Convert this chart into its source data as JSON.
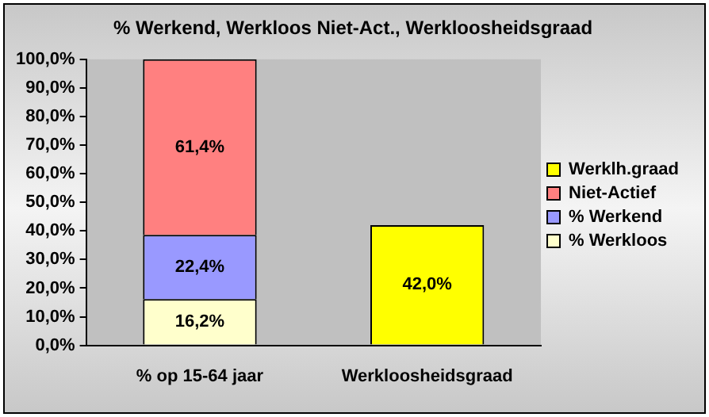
{
  "chart_data": {
    "type": "bar",
    "title": "% Werkend, Werkloos Niet-Act., Werkloosheidsgraad",
    "categories": [
      "% op 15-64 jaar",
      "Werkloosheidsgraad"
    ],
    "stacked": true,
    "legend": "right",
    "grid": false,
    "ylim": [
      0,
      100
    ],
    "yticks": [
      {
        "value": 0,
        "label": "0,0%"
      },
      {
        "value": 10,
        "label": "10,0%"
      },
      {
        "value": 20,
        "label": "20,0%"
      },
      {
        "value": 30,
        "label": "30,0%"
      },
      {
        "value": 40,
        "label": "40,0%"
      },
      {
        "value": 50,
        "label": "50,0%"
      },
      {
        "value": 60,
        "label": "60,0%"
      },
      {
        "value": 70,
        "label": "70,0%"
      },
      {
        "value": 80,
        "label": "80,0%"
      },
      {
        "value": 90,
        "label": "90,0%"
      },
      {
        "value": 100,
        "label": "100,0%"
      }
    ],
    "series": [
      {
        "name": "% Werkloos",
        "color": "#ffffcc",
        "values": [
          16.2,
          null
        ],
        "value_labels": [
          "16,2%",
          null
        ]
      },
      {
        "name": "% Werkend",
        "color": "#9999ff",
        "values": [
          22.4,
          null
        ],
        "value_labels": [
          "22,4%",
          null
        ]
      },
      {
        "name": "Niet-Actief",
        "color": "#ff8080",
        "values": [
          61.4,
          null
        ],
        "value_labels": [
          "61,4%",
          null
        ]
      },
      {
        "name": "Werklh.graad",
        "color": "#ffff00",
        "values": [
          null,
          42.0
        ],
        "value_labels": [
          null,
          "42,0%"
        ]
      }
    ]
  }
}
